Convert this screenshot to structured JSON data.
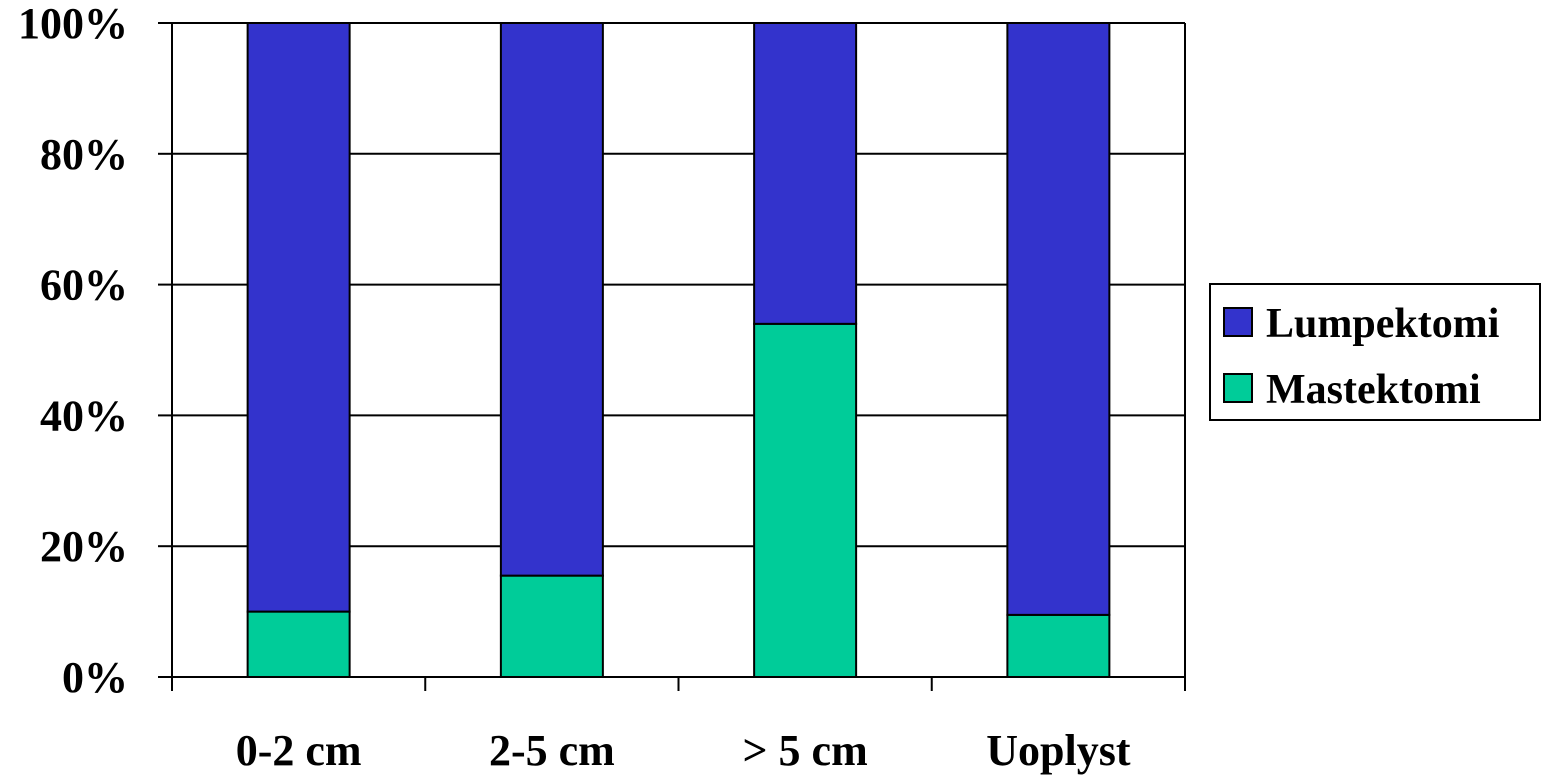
{
  "chart_data": {
    "type": "bar",
    "stacked": true,
    "percent": true,
    "categories": [
      "0-2 cm",
      "2-5 cm",
      "> 5 cm",
      "Uoplyst"
    ],
    "series": [
      {
        "name": "Mastektomi",
        "values": [
          10,
          15.5,
          54,
          9.5
        ],
        "color": "#00CC99"
      },
      {
        "name": "Lumpektomi",
        "values": [
          90,
          84.5,
          46,
          90.5
        ],
        "color": "#3333CC"
      }
    ],
    "ylim": [
      0,
      100
    ],
    "yticks": [
      "0%",
      "20%",
      "40%",
      "60%",
      "80%",
      "100%"
    ],
    "grid": true,
    "legend_position": "right",
    "legend": [
      "Lumpektomi",
      "Mastektomi"
    ]
  }
}
